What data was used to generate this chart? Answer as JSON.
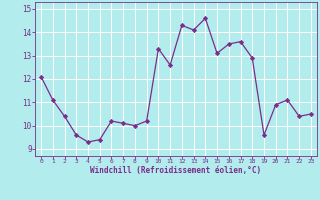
{
  "x": [
    0,
    1,
    2,
    3,
    4,
    5,
    6,
    7,
    8,
    9,
    10,
    11,
    12,
    13,
    14,
    15,
    16,
    17,
    18,
    19,
    20,
    21,
    22,
    23
  ],
  "y": [
    12.1,
    11.1,
    10.4,
    9.6,
    9.3,
    9.4,
    10.2,
    10.1,
    10.0,
    10.2,
    13.3,
    12.6,
    14.3,
    14.1,
    14.6,
    13.1,
    13.5,
    13.6,
    12.9,
    9.6,
    10.9,
    11.1,
    10.4,
    10.5
  ],
  "xlabel": "Windchill (Refroidissement éolien,°C)",
  "ylim": [
    8.7,
    15.3
  ],
  "xlim": [
    -0.5,
    23.5
  ],
  "line_color": "#7b2d8b",
  "marker_color": "#7b2d8b",
  "bg_color": "#b2ecec",
  "grid_color": "#d0f0f0",
  "tick_label_color": "#7b2d8b",
  "yticks": [
    9,
    10,
    11,
    12,
    13,
    14,
    15
  ],
  "xticks": [
    0,
    1,
    2,
    3,
    4,
    5,
    6,
    7,
    8,
    9,
    10,
    11,
    12,
    13,
    14,
    15,
    16,
    17,
    18,
    19,
    20,
    21,
    22,
    23
  ]
}
